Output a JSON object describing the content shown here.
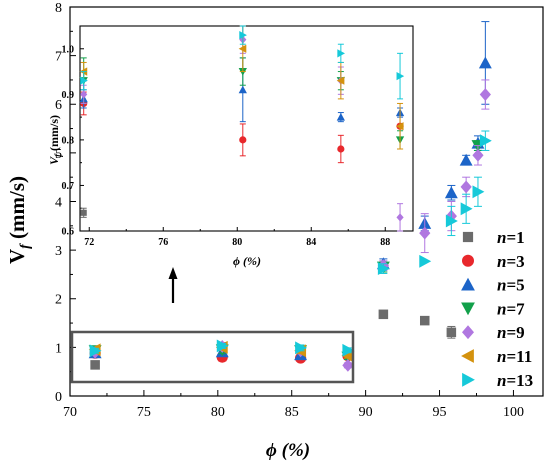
{
  "chart_data": [
    {
      "type": "scatter",
      "role": "main",
      "xlabel": "ϕ (%)",
      "ylabel_main": "V",
      "ylabel_sub": "f",
      "ylabel_unit": " (mm/s)",
      "xlim": [
        70,
        102
      ],
      "ylim": [
        0,
        8
      ],
      "xticks": [
        70,
        75,
        80,
        85,
        90,
        95,
        100
      ],
      "yticks": [
        0,
        1,
        2,
        3,
        4,
        5,
        6,
        7,
        8
      ],
      "legend_position": "bottom-right",
      "series": [
        {
          "name": "n=1",
          "n_label": "n",
          "eq_label": "=1",
          "marker": "square",
          "color": "#6b6b6b",
          "points": [
            [
              71.7,
              0.64,
              0.04
            ],
            [
              91.2,
              1.68,
              0
            ],
            [
              94.0,
              1.55,
              0
            ],
            [
              95.8,
              1.31,
              0.12
            ]
          ]
        },
        {
          "name": "n=3",
          "n_label": "n",
          "eq_label": "=3",
          "marker": "circle",
          "color": "#e8282c",
          "points": [
            [
              71.7,
              0.88,
              0.05
            ],
            [
              80.3,
              0.8,
              0.08
            ],
            [
              85.6,
              0.78,
              0.06
            ],
            [
              88.8,
              0.83,
              0.05
            ]
          ]
        },
        {
          "name": "n=5",
          "n_label": "n",
          "eq_label": "=5",
          "marker": "triangle-up",
          "color": "#1c64c8",
          "points": [
            [
              71.7,
              0.89,
              0.05
            ],
            [
              80.3,
              0.91,
              0.08
            ],
            [
              85.6,
              0.85,
              0.05
            ],
            [
              91.2,
              2.72,
              0.1
            ],
            [
              94.0,
              3.55,
              0.15
            ],
            [
              95.8,
              4.18,
              0.15
            ],
            [
              96.8,
              4.85,
              0.1
            ],
            [
              97.6,
              5.2,
              0.15
            ],
            [
              98.1,
              6.85,
              0.85
            ]
          ]
        },
        {
          "name": "n=7",
          "n_label": "n",
          "eq_label": "=7",
          "marker": "triangle-down",
          "color": "#12a04a",
          "points": [
            [
              71.7,
              0.93,
              0.05
            ],
            [
              80.3,
              0.95,
              0.08
            ],
            [
              85.6,
              0.93,
              0.06
            ],
            [
              88.8,
              0.8,
              0.05
            ],
            [
              91.2,
              2.65,
              0.1
            ],
            [
              97.6,
              5.15,
              0.1
            ]
          ]
        },
        {
          "name": "n=9",
          "n_label": "n",
          "eq_label": "=9",
          "marker": "diamond",
          "color": "#b077e0",
          "points": [
            [
              71.7,
              0.9,
              0.05
            ],
            [
              80.3,
              1.02,
              0.08
            ],
            [
              85.6,
              0.93,
              0.06
            ],
            [
              88.8,
              0.63,
              0.05
            ],
            [
              91.2,
              2.68,
              0.1
            ],
            [
              94.0,
              3.35,
              0.4
            ],
            [
              95.8,
              3.7,
              0.3
            ],
            [
              96.8,
              4.3,
              0.2
            ],
            [
              97.6,
              4.95,
              0.2
            ],
            [
              98.1,
              6.2,
              0.3
            ]
          ]
        },
        {
          "name": "n=11",
          "n_label": "n",
          "eq_label": "=11",
          "marker": "triangle-left",
          "color": "#d4920e",
          "points": [
            [
              71.7,
              0.95,
              0.05
            ],
            [
              80.3,
              1.0,
              0.05
            ],
            [
              85.6,
              0.93,
              0.06
            ],
            [
              88.8,
              0.83,
              0.05
            ]
          ]
        },
        {
          "name": "n=13",
          "n_label": "n",
          "eq_label": "=13",
          "marker": "triangle-right",
          "color": "#16c9d9",
          "points": [
            [
              71.7,
              0.93,
              0.05
            ],
            [
              80.3,
              1.03,
              0.05
            ],
            [
              85.6,
              0.99,
              0.06
            ],
            [
              88.8,
              0.94,
              0.05
            ],
            [
              91.2,
              2.62,
              0.1
            ],
            [
              94.0,
              2.77,
              0
            ],
            [
              95.8,
              3.6,
              0.3
            ],
            [
              96.8,
              3.85,
              0.3
            ],
            [
              97.6,
              4.2,
              0.3
            ],
            [
              98.1,
              5.25,
              0.2
            ]
          ]
        }
      ]
    },
    {
      "type": "scatter",
      "role": "inset",
      "xlabel": "ϕ (%)",
      "ylabel_main": "V",
      "ylabel_sub": "f",
      "ylabel_unit": " (mm/s)",
      "xlim": [
        71.5,
        89.5
      ],
      "ylim": [
        0.6,
        1.05
      ],
      "xticks": [
        72,
        76,
        80,
        84,
        88
      ],
      "yticks": [
        0.6,
        0.7,
        0.8,
        0.9,
        1.0
      ],
      "ytick_labels": [
        "0.6",
        "0.7",
        "0.8",
        "0.9",
        "1.0"
      ],
      "series": [
        {
          "name": "n=1",
          "marker": "square",
          "color": "#6b6b6b",
          "points": [
            [
              71.7,
              0.64,
              0.01
            ]
          ]
        },
        {
          "name": "n=3",
          "marker": "circle",
          "color": "#e8282c",
          "points": [
            [
              71.7,
              0.88,
              0.025
            ],
            [
              80.3,
              0.8,
              0.035
            ],
            [
              85.6,
              0.78,
              0.03
            ],
            [
              88.8,
              0.83,
              0.025
            ]
          ]
        },
        {
          "name": "n=5",
          "marker": "triangle-up",
          "color": "#1c64c8",
          "points": [
            [
              71.7,
              0.89,
              0.02
            ],
            [
              80.3,
              0.91,
              0.07
            ],
            [
              85.6,
              0.85,
              0.01
            ],
            [
              88.8,
              0.86,
              0.01
            ]
          ]
        },
        {
          "name": "n=7",
          "marker": "triangle-down",
          "color": "#12a04a",
          "points": [
            [
              71.7,
              0.93,
              0.05
            ],
            [
              80.3,
              0.95,
              0.03
            ],
            [
              85.6,
              0.93,
              0.02
            ],
            [
              88.8,
              0.8,
              0.02
            ]
          ]
        },
        {
          "name": "n=9",
          "marker": "diamond",
          "color": "#b077e0",
          "points": [
            [
              71.7,
              0.9,
              0.02
            ],
            [
              80.3,
              1.02,
              0.03
            ],
            [
              85.6,
              0.93,
              0.03
            ],
            [
              88.8,
              0.63,
              0.03
            ]
          ]
        },
        {
          "name": "n=11",
          "marker": "triangle-left",
          "color": "#d4920e",
          "points": [
            [
              71.7,
              0.95,
              0.02
            ],
            [
              80.3,
              1.0,
              0.05
            ],
            [
              85.6,
              0.93,
              0.04
            ],
            [
              88.8,
              0.83,
              0.05
            ]
          ]
        },
        {
          "name": "n=13",
          "marker": "triangle-right",
          "color": "#16c9d9",
          "points": [
            [
              71.7,
              0.93,
              0.02
            ],
            [
              80.3,
              1.03,
              0.02
            ],
            [
              85.6,
              0.99,
              0.02
            ],
            [
              88.8,
              0.94,
              0.05
            ]
          ]
        }
      ]
    }
  ]
}
